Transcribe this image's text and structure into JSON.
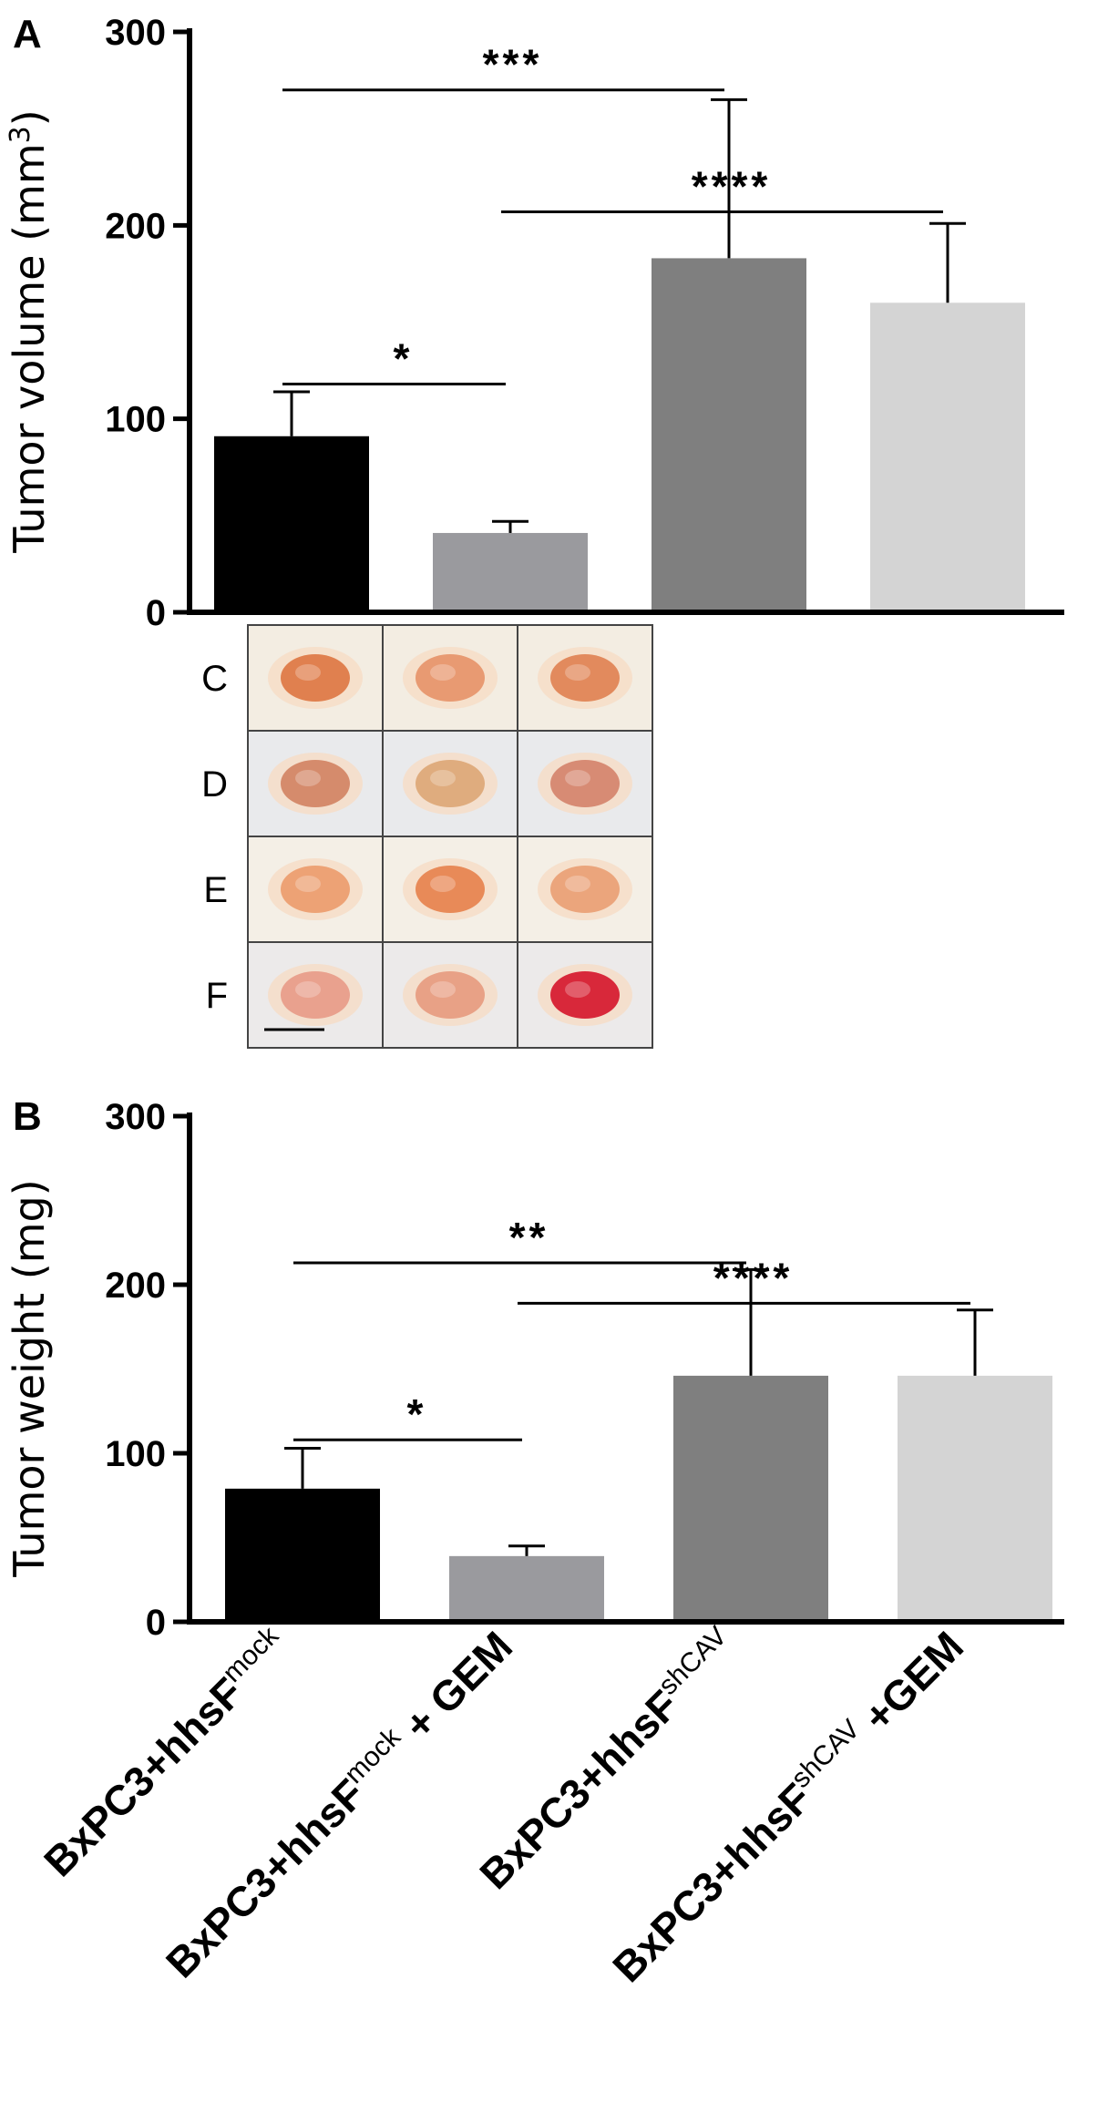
{
  "chart_data": [
    {
      "panel": "A",
      "type": "bar",
      "ylabel": "Tumor volume (mm",
      "ylabel_sup": "3",
      "ylabel_end": ")",
      "ylim": [
        0,
        300
      ],
      "yticks": [
        "0",
        "100",
        "200",
        "300"
      ],
      "categories": [
        "BxPC3+hhsF^mock",
        "BxPC3+hhsF^mock + GEM",
        "BxPC3+hhsF^shCAV",
        "BxPC3+hhsF^shCAV +GEM"
      ],
      "values": [
        91,
        41,
        183,
        160
      ],
      "errors": [
        23,
        6,
        82,
        41
      ],
      "colors": [
        "#000000",
        "#9a9a9e",
        "#7f7f7f",
        "#d4d4d4"
      ],
      "significance": [
        {
          "from": 0,
          "to": 1,
          "label": "*",
          "level": 118
        },
        {
          "from": 0,
          "to": 2,
          "label": "***",
          "level": 270
        },
        {
          "from": 1,
          "to": 3,
          "label": "****",
          "level": 207
        }
      ]
    },
    {
      "panel": "B",
      "type": "bar",
      "ylabel": "Tumor weight (mg)",
      "ylim": [
        0,
        300
      ],
      "yticks": [
        "0",
        "100",
        "200",
        "300"
      ],
      "categories": [
        "BxPC3+hhsF^mock",
        "BxPC3+hhsF^mock + GEM",
        "BxPC3+hhsF^shCAV",
        "BxPC3+hhsF^shCAV +GEM"
      ],
      "values": [
        79,
        39,
        146,
        146
      ],
      "errors": [
        24,
        6,
        63,
        39
      ],
      "colors": [
        "#000000",
        "#9a9a9e",
        "#7f7f7f",
        "#d4d4d4"
      ],
      "significance": [
        {
          "from": 0,
          "to": 1,
          "label": "*",
          "level": 108
        },
        {
          "from": 0,
          "to": 2,
          "label": "**",
          "level": 213
        },
        {
          "from": 1,
          "to": 3,
          "label": "****",
          "level": 189
        }
      ]
    }
  ],
  "panels": {
    "a_letter": "A",
    "b_letter": "B"
  },
  "photo_grid": {
    "row_labels": [
      "C",
      "D",
      "E",
      "F"
    ],
    "tumor_colors": [
      [
        "#e0804f",
        "#e89a72",
        "#e28a5d"
      ],
      [
        "#d58b6c",
        "#dfac7e",
        "#d78b74"
      ],
      [
        "#eda275",
        "#e88a58",
        "#eba57c"
      ],
      [
        "#e9a18e",
        "#e8a186",
        "#d8283a"
      ]
    ]
  },
  "x_categories": [
    {
      "base": "BxPC3+hhsF",
      "sup": "mock",
      "suffix": ""
    },
    {
      "base": "BxPC3+hhsF",
      "sup": "mock",
      "suffix": " + GEM"
    },
    {
      "base": "BxPC3+hhsF",
      "sup": "shCAV",
      "suffix": ""
    },
    {
      "base": "BxPC3+hhsF",
      "sup": "shCAV",
      "suffix": " +GEM"
    }
  ]
}
